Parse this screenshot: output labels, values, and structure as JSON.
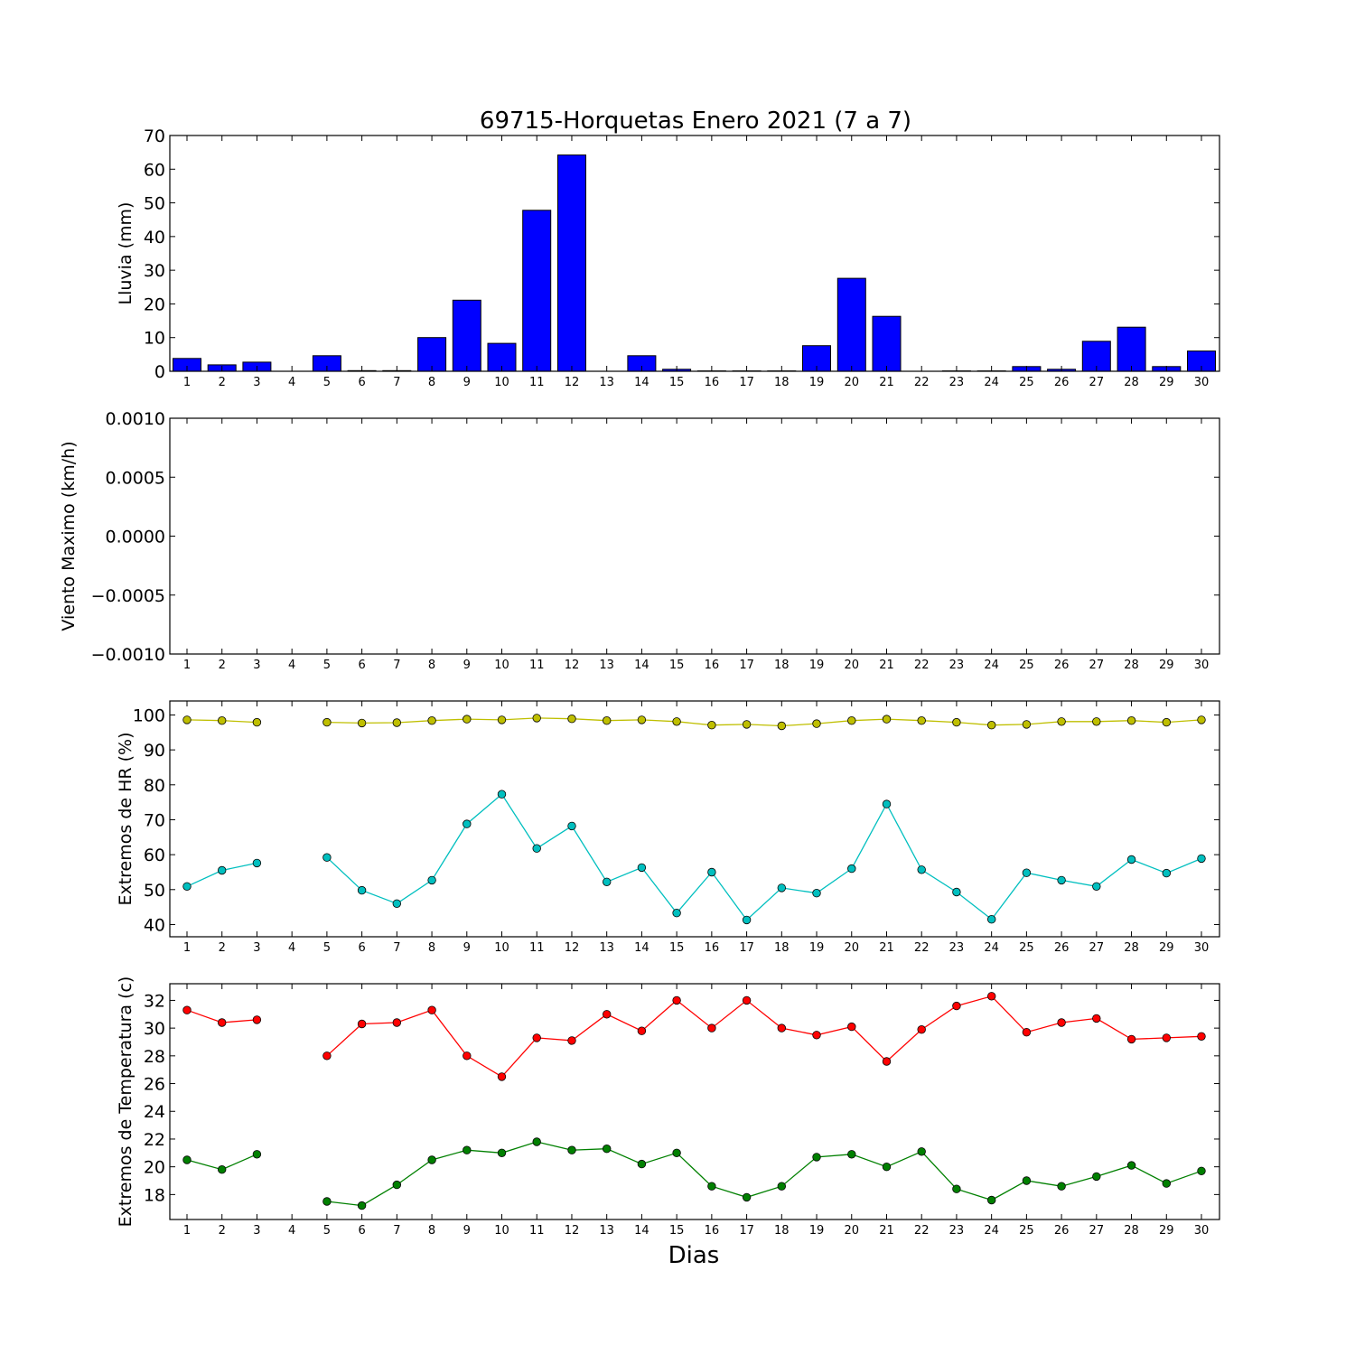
{
  "title": "69715-Horquetas Enero 2021  (7 a 7)",
  "xlabel": "Dias",
  "colors": {
    "bar": "#0000ff",
    "hr_max": "#bfbf00",
    "hr_min": "#00bfbf",
    "temp_max": "#ff0000",
    "temp_min": "#008000"
  },
  "chart_data": [
    {
      "id": "lluvia",
      "type": "bar",
      "ylabel": "Lluvia (mm)",
      "categories": [
        "1",
        "2",
        "3",
        "4",
        "5",
        "6",
        "7",
        "8",
        "9",
        "10",
        "11",
        "12",
        "13",
        "14",
        "15",
        "16",
        "17",
        "18",
        "19",
        "20",
        "21",
        "22",
        "23",
        "24",
        "25",
        "26",
        "27",
        "28",
        "29",
        "30"
      ],
      "yticks": [
        "0",
        "10",
        "20",
        "30",
        "40",
        "50",
        "60",
        "70"
      ],
      "ylim": [
        0,
        70
      ],
      "series": [
        {
          "values": [
            3.8,
            1.9,
            2.7,
            0,
            4.6,
            0.2,
            0.2,
            10.0,
            21.1,
            8.3,
            47.8,
            64.2,
            0,
            4.6,
            0.6,
            0.1,
            0.1,
            0.1,
            7.6,
            27.6,
            16.3,
            0,
            0.1,
            0.1,
            1.4,
            0.6,
            8.9,
            13.1,
            1.4,
            6.0
          ]
        }
      ]
    },
    {
      "id": "viento",
      "type": "line",
      "ylabel": "Viento Maximo (km/h)",
      "categories": [
        "1",
        "2",
        "3",
        "4",
        "5",
        "6",
        "7",
        "8",
        "9",
        "10",
        "11",
        "12",
        "13",
        "14",
        "15",
        "16",
        "17",
        "18",
        "19",
        "20",
        "21",
        "22",
        "23",
        "24",
        "25",
        "26",
        "27",
        "28",
        "29",
        "30"
      ],
      "yticks": [
        "0.0010",
        "0.0005",
        "0.0000",
        "−0.0005",
        "−0.0010"
      ],
      "ylim": [
        -0.001,
        0.001
      ],
      "series": []
    },
    {
      "id": "hr",
      "type": "line",
      "ylabel": "Extremos de HR (%)",
      "categories": [
        "1",
        "2",
        "3",
        "4",
        "5",
        "6",
        "7",
        "8",
        "9",
        "10",
        "11",
        "12",
        "13",
        "14",
        "15",
        "16",
        "17",
        "18",
        "19",
        "20",
        "21",
        "22",
        "23",
        "24",
        "25",
        "26",
        "27",
        "28",
        "29",
        "30"
      ],
      "yticks": [
        "40",
        "50",
        "60",
        "70",
        "80",
        "90",
        "100"
      ],
      "ylim": [
        36.5,
        104
      ],
      "series": [
        {
          "values": [
            98.6,
            98.4,
            97.9,
            null,
            97.9,
            97.7,
            97.8,
            98.4,
            98.8,
            98.6,
            99.1,
            98.9,
            98.4,
            98.6,
            98.1,
            97.1,
            97.3,
            96.9,
            97.5,
            98.4,
            98.8,
            98.4,
            97.9,
            97.1,
            97.3,
            98.1,
            98.1,
            98.4,
            97.9,
            98.6
          ]
        },
        {
          "values": [
            50.9,
            55.5,
            57.6,
            null,
            59.2,
            49.8,
            46.0,
            52.7,
            68.8,
            77.3,
            61.8,
            68.2,
            52.2,
            56.3,
            43.3,
            55.0,
            41.3,
            50.5,
            49.0,
            56.0,
            74.5,
            55.7,
            49.3,
            41.5,
            54.8,
            52.7,
            50.9,
            58.6,
            54.7,
            58.9
          ]
        }
      ]
    },
    {
      "id": "temp",
      "type": "line",
      "ylabel": "Extremos de Temperatura (c)",
      "categories": [
        "1",
        "2",
        "3",
        "4",
        "5",
        "6",
        "7",
        "8",
        "9",
        "10",
        "11",
        "12",
        "13",
        "14",
        "15",
        "16",
        "17",
        "18",
        "19",
        "20",
        "21",
        "22",
        "23",
        "24",
        "25",
        "26",
        "27",
        "28",
        "29",
        "30"
      ],
      "yticks": [
        "18",
        "20",
        "22",
        "24",
        "26",
        "28",
        "30",
        "32"
      ],
      "ylim": [
        16.2,
        33.2
      ],
      "series": [
        {
          "values": [
            31.3,
            30.4,
            30.6,
            null,
            28.0,
            30.3,
            30.4,
            31.3,
            28.0,
            26.5,
            29.3,
            29.1,
            31.0,
            29.8,
            32.0,
            30.0,
            32.0,
            30.0,
            29.5,
            30.1,
            27.6,
            29.9,
            31.6,
            32.3,
            29.7,
            30.4,
            30.7,
            29.2,
            29.3,
            29.4
          ]
        },
        {
          "values": [
            20.5,
            19.8,
            20.9,
            null,
            17.5,
            17.2,
            18.7,
            20.5,
            21.2,
            21.0,
            21.8,
            21.2,
            21.3,
            20.2,
            21.0,
            18.6,
            17.8,
            18.6,
            20.7,
            20.9,
            20.0,
            21.1,
            18.4,
            17.6,
            19.0,
            18.6,
            19.3,
            20.1,
            18.8,
            19.7
          ]
        }
      ]
    }
  ]
}
